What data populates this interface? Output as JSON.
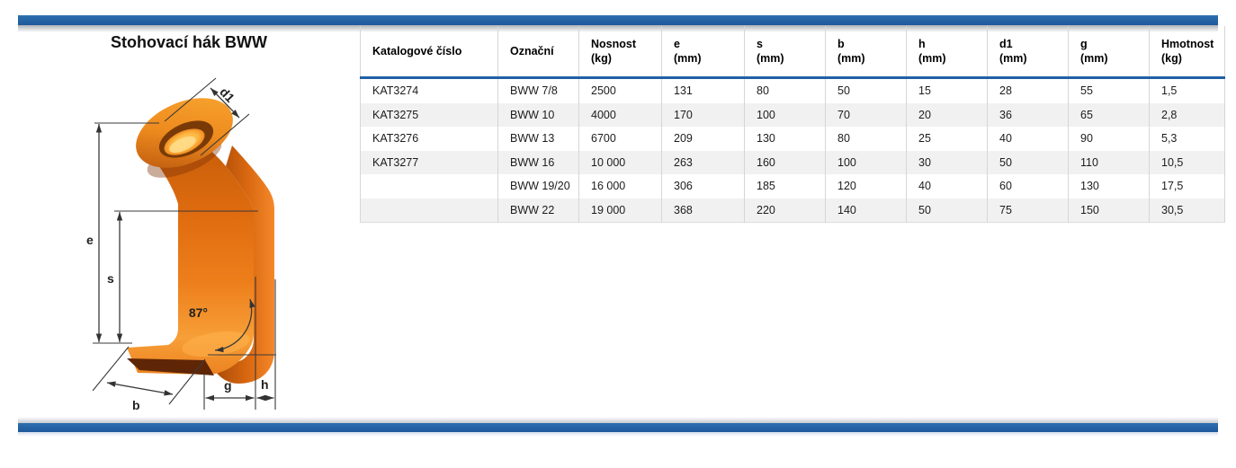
{
  "page": {
    "title": "Stohovací hák BWW"
  },
  "colors": {
    "divider_blue": "#2263a6",
    "header_rule_blue": "#2060a5",
    "zebra_gray": "#f1f1f1",
    "hook_orange": "#ec7f1b"
  },
  "diagram": {
    "labels": {
      "d1": "d1",
      "e": "e",
      "s": "s",
      "b": "b",
      "g": "g",
      "h": "h",
      "angle": "87°"
    }
  },
  "table": {
    "columns": [
      {
        "label": "Katalogové číslo",
        "sub": ""
      },
      {
        "label": "Označní",
        "sub": ""
      },
      {
        "label": "Nosnost",
        "sub": "(kg)"
      },
      {
        "label": "e",
        "sub": "(mm)"
      },
      {
        "label": "s",
        "sub": "(mm)"
      },
      {
        "label": "b",
        "sub": "(mm)"
      },
      {
        "label": "h",
        "sub": "(mm)"
      },
      {
        "label": "d1",
        "sub": "(mm)"
      },
      {
        "label": "g",
        "sub": "(mm)"
      },
      {
        "label": "Hmotnost",
        "sub": "(kg)"
      }
    ],
    "rows": [
      [
        "KAT3274",
        "BWW 7/8",
        "2500",
        "131",
        "80",
        "50",
        "15",
        "28",
        "55",
        "1,5"
      ],
      [
        "KAT3275",
        "BWW 10",
        "4000",
        "170",
        "100",
        "70",
        "20",
        "36",
        "65",
        "2,8"
      ],
      [
        "KAT3276",
        "BWW 13",
        "6700",
        "209",
        "130",
        "80",
        "25",
        "40",
        "90",
        "5,3"
      ],
      [
        "KAT3277",
        "BWW 16",
        "10 000",
        "263",
        "160",
        "100",
        "30",
        "50",
        "110",
        "10,5"
      ],
      [
        "",
        "BWW 19/20",
        "16 000",
        "306",
        "185",
        "120",
        "40",
        "60",
        "130",
        "17,5"
      ],
      [
        "",
        "BWW 22",
        "19 000",
        "368",
        "220",
        "140",
        "50",
        "75",
        "150",
        "30,5"
      ]
    ]
  }
}
